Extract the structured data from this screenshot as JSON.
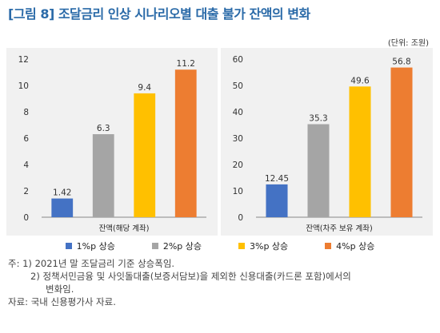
{
  "figure": {
    "title": "[그림 8] 조달금리 인상 시나리오별 대출 불가 잔액의 변화",
    "unit": "(단위: 조원)"
  },
  "legend": [
    {
      "label": "1%p 상승",
      "color": "#4472c4"
    },
    {
      "label": "2%p 상승",
      "color": "#a5a5a5"
    },
    {
      "label": "3%p 상승",
      "color": "#ffc000"
    },
    {
      "label": "4%p 상승",
      "color": "#ed7d31"
    }
  ],
  "chart_data": [
    {
      "type": "bar",
      "xlabel": "잔액(해당 계좌)",
      "ylim": [
        0,
        12
      ],
      "yticks": [
        0,
        2,
        4,
        6,
        8,
        10,
        12
      ],
      "categories": [
        "1%p 상승",
        "2%p 상승",
        "3%p 상승",
        "4%p 상승"
      ],
      "values": [
        1.42,
        6.3,
        9.4,
        11.2
      ],
      "value_labels": [
        "1.42",
        "6.3",
        "9.4",
        "11.2"
      ],
      "colors": [
        "#4472c4",
        "#a5a5a5",
        "#ffc000",
        "#ed7d31"
      ],
      "grid": false
    },
    {
      "type": "bar",
      "xlabel": "잔액(차주 보유 계좌)",
      "ylim": [
        0,
        60
      ],
      "yticks": [
        0,
        10,
        20,
        30,
        40,
        50,
        60
      ],
      "categories": [
        "1%p 상승",
        "2%p 상승",
        "3%p 상승",
        "4%p 상승"
      ],
      "values": [
        12.45,
        35.3,
        49.6,
        56.8
      ],
      "value_labels": [
        "12.45",
        "35.3",
        "49.6",
        "56.8"
      ],
      "colors": [
        "#4472c4",
        "#a5a5a5",
        "#ffc000",
        "#ed7d31"
      ],
      "grid": false
    }
  ],
  "notes": {
    "line1": "주: 1) 2021년 말 조달금리 기준 상승폭임.",
    "line2": "2) 정책서민금융 및 사잇돌대출(보증서담보)을 제외한 신용대출(카드론 포함)에서의",
    "line3": "변화임.",
    "source": "자료: 국내 신용평가사 자료."
  }
}
